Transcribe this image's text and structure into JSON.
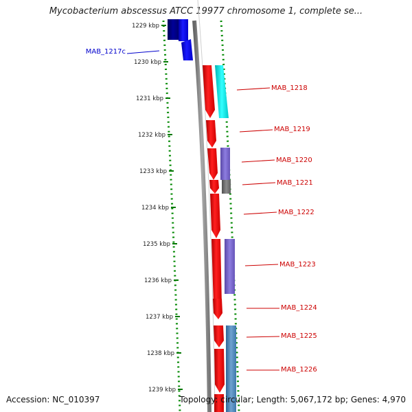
{
  "title": "Mycobacterium abscessus ATCC 19977 chromosome 1, complete se...",
  "footer": {
    "accession_label": "Accession:",
    "accession_value": "NC_010397",
    "topology_label": "Topology:",
    "topology_value": "circular",
    "length_label": "Length:",
    "length_value": "5,067,172 bp",
    "genes_label": "Genes:",
    "genes_value": "4,970"
  },
  "scale_labels": [
    "1229 kbp",
    "1230 kbp",
    "1231 kbp",
    "1232 kbp",
    "1233 kbp",
    "1234 kbp",
    "1235 kbp",
    "1236 kbp",
    "1237 kbp",
    "1238 kbp",
    "1239 kbp"
  ],
  "gene_labels": [
    {
      "name": "MAB_1217c",
      "strand": "reverse",
      "color": "#0000cc"
    },
    {
      "name": "MAB_1218",
      "strand": "forward",
      "color": "#cc0000"
    },
    {
      "name": "MAB_1219",
      "strand": "forward",
      "color": "#cc0000"
    },
    {
      "name": "MAB_1220",
      "strand": "forward",
      "color": "#cc0000"
    },
    {
      "name": "MAB_1221",
      "strand": "forward",
      "color": "#cc0000"
    },
    {
      "name": "MAB_1222",
      "strand": "forward",
      "color": "#cc0000"
    },
    {
      "name": "MAB_1223",
      "strand": "forward",
      "color": "#cc0000"
    },
    {
      "name": "MAB_1224",
      "strand": "forward",
      "color": "#cc0000"
    },
    {
      "name": "MAB_1225",
      "strand": "forward",
      "color": "#cc0000"
    },
    {
      "name": "MAB_1226",
      "strand": "forward",
      "color": "#cc0000"
    }
  ],
  "colors": {
    "forward_gene": "#ff0000",
    "reverse_gene": "#0000ee",
    "reverse_gene_dark": "#000088",
    "backbone": "#888888",
    "scale_green": "#007700",
    "cog_cyan": "#00e5e5",
    "cog_purple": "#7b68cc",
    "cog_gray": "#707070",
    "cog_steelblue": "#4f86b8"
  }
}
